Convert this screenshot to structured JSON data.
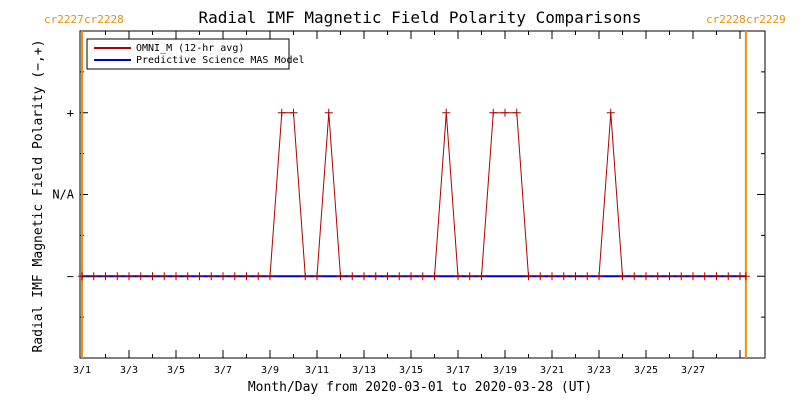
{
  "chart_data": {
    "type": "line",
    "title": "Radial IMF Magnetic Field Polarity Comparisons",
    "xlabel": "Month/Day from 2020-03-01 to 2020-03-28 (UT)",
    "ylabel": "Radial IMF Magnetic Field Polarity (−,+)",
    "x_tick_labels": [
      "3/1",
      "3/3",
      "3/5",
      "3/7",
      "3/9",
      "3/11",
      "3/13",
      "3/15",
      "3/17",
      "3/19",
      "3/21",
      "3/23",
      "3/25",
      "3/27"
    ],
    "y_tick_labels": [
      {
        "value": 1,
        "label": "+"
      },
      {
        "value": 0,
        "label": "N/A"
      },
      {
        "value": -1,
        "label": "−"
      }
    ],
    "xlim": [
      0,
      28.5
    ],
    "ylim": [
      -2,
      2
    ],
    "carrington_markers": [
      {
        "day": 0,
        "label_left": "cr2227",
        "label_right": "cr2228"
      },
      {
        "day": 28.25,
        "label_left": "cr2228",
        "label_right": "cr2229"
      }
    ],
    "marker_color": "#f0900a",
    "series": [
      {
        "name": "OMNI_M (12-hr avg)",
        "color": "#b00000",
        "x": [
          0,
          0.5,
          1,
          1.5,
          2,
          2.5,
          3,
          3.5,
          4,
          4.5,
          5,
          5.5,
          6,
          6.5,
          7,
          7.5,
          8,
          8.5,
          9,
          9.5,
          10,
          10.5,
          11,
          11.5,
          12,
          12.5,
          13,
          13.5,
          14,
          14.5,
          15,
          15.5,
          16,
          16.5,
          17,
          17.5,
          18,
          18.5,
          19,
          19.5,
          20,
          20.5,
          21,
          21.5,
          22,
          22.5,
          23,
          23.5,
          24,
          24.5,
          25,
          25.5,
          26,
          26.5,
          27,
          27.5,
          28,
          28.25
        ],
        "y": [
          -1,
          -1,
          -1,
          -1,
          -1,
          -1,
          -1,
          -1,
          -1,
          -1,
          -1,
          -1,
          -1,
          -1,
          -1,
          -1,
          -1,
          1,
          1,
          -1,
          -1,
          1,
          -1,
          -1,
          -1,
          -1,
          -1,
          -1,
          -1,
          -1,
          -1,
          1,
          -1,
          -1,
          -1,
          1,
          1,
          1,
          -1,
          -1,
          -1,
          -1,
          -1,
          -1,
          -1,
          1,
          -1,
          -1,
          -1,
          -1,
          -1,
          -1,
          -1,
          -1,
          -1,
          -1,
          -1,
          -1
        ]
      },
      {
        "name": "Predictive Science MAS Model",
        "color": "#0000c8",
        "x": [
          0,
          28.25
        ],
        "y": [
          -1,
          -1
        ]
      }
    ]
  }
}
